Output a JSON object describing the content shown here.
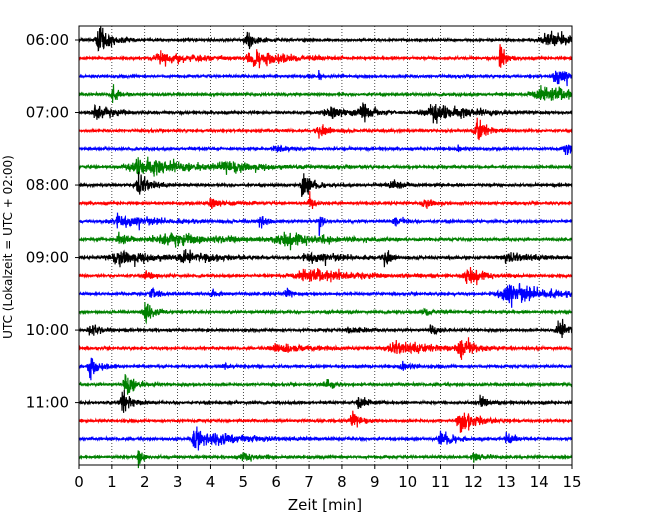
{
  "chart_data": {
    "type": "line",
    "xlabel": "Zeit  [min]",
    "ylabel": "UTC (Lokalzeit = UTC + 02:00)",
    "xlim": [
      0,
      15
    ],
    "x_ticks": [
      0,
      1,
      2,
      3,
      4,
      5,
      6,
      7,
      8,
      9,
      10,
      11,
      12,
      13,
      14,
      15
    ],
    "y_ticks": [
      "06:00",
      "07:00",
      "08:00",
      "09:00",
      "10:00",
      "11:00"
    ],
    "start_time": "06:00",
    "trace_interval_min": 15,
    "grid": "vertical dotted",
    "colors": [
      "#000000",
      "#ff0000",
      "#0000ff",
      "#008000"
    ],
    "traces": [
      {
        "time": "06:00",
        "events": [
          {
            "t": 0.6,
            "amp": 1.0,
            "dur": 0.4
          },
          {
            "t": 5.1,
            "amp": 0.7,
            "dur": 0.3
          },
          {
            "t": 14.2,
            "amp": 0.45,
            "dur": 0.9
          }
        ]
      },
      {
        "time": "06:15",
        "events": [
          {
            "t": 2.5,
            "amp": 0.35,
            "dur": 1.2
          },
          {
            "t": 5.3,
            "amp": 0.45,
            "dur": 1.2
          },
          {
            "t": 12.8,
            "amp": 0.9,
            "dur": 0.2
          }
        ]
      },
      {
        "time": "06:30",
        "events": [
          {
            "t": 7.3,
            "amp": 0.3,
            "dur": 0.1
          },
          {
            "t": 14.5,
            "amp": 0.65,
            "dur": 0.4
          }
        ]
      },
      {
        "time": "06:45",
        "events": [
          {
            "t": 1.0,
            "amp": 0.55,
            "dur": 0.2
          },
          {
            "t": 14.0,
            "amp": 0.6,
            "dur": 1.2
          }
        ]
      },
      {
        "time": "07:00",
        "events": [
          {
            "t": 0.5,
            "amp": 0.6,
            "dur": 0.5
          },
          {
            "t": 8.6,
            "amp": 0.6,
            "dur": 0.3
          },
          {
            "t": 10.8,
            "amp": 0.55,
            "dur": 1.2
          },
          {
            "t": 7.6,
            "amp": 0.3,
            "dur": 1.2
          }
        ]
      },
      {
        "time": "07:15",
        "events": [
          {
            "t": 7.3,
            "amp": 0.4,
            "dur": 0.4
          },
          {
            "t": 12.1,
            "amp": 0.85,
            "dur": 0.3
          }
        ]
      },
      {
        "time": "07:30",
        "events": [
          {
            "t": 14.8,
            "amp": 0.5,
            "dur": 0.3
          },
          {
            "t": 6.0,
            "amp": 0.25,
            "dur": 0.4
          },
          {
            "t": 11.5,
            "amp": 0.25,
            "dur": 0.2
          }
        ]
      },
      {
        "time": "07:45",
        "events": [
          {
            "t": 1.8,
            "amp": 0.6,
            "dur": 1.6
          },
          {
            "t": 4.5,
            "amp": 0.25,
            "dur": 1.5
          }
        ]
      },
      {
        "time": "08:00",
        "events": [
          {
            "t": 1.8,
            "amp": 0.75,
            "dur": 0.4
          },
          {
            "t": 6.8,
            "amp": 1.0,
            "dur": 0.3
          },
          {
            "t": 9.5,
            "amp": 0.3,
            "dur": 0.5
          }
        ]
      },
      {
        "time": "08:15",
        "events": [
          {
            "t": 7.0,
            "amp": 0.55,
            "dur": 0.15
          },
          {
            "t": 10.5,
            "amp": 0.3,
            "dur": 0.4
          },
          {
            "t": 4.0,
            "amp": 0.25,
            "dur": 0.6
          }
        ]
      },
      {
        "time": "08:30",
        "events": [
          {
            "t": 7.3,
            "amp": 1.0,
            "dur": 0.1
          },
          {
            "t": 5.5,
            "amp": 0.4,
            "dur": 0.2
          },
          {
            "t": 1.2,
            "amp": 0.35,
            "dur": 1.4
          },
          {
            "t": 9.6,
            "amp": 0.35,
            "dur": 0.3
          }
        ]
      },
      {
        "time": "08:45",
        "events": [
          {
            "t": 1.2,
            "amp": 0.55,
            "dur": 0.3
          },
          {
            "t": 2.6,
            "amp": 0.4,
            "dur": 1.8
          },
          {
            "t": 6.2,
            "amp": 0.35,
            "dur": 1.6
          }
        ]
      },
      {
        "time": "09:00",
        "events": [
          {
            "t": 1.2,
            "amp": 0.45,
            "dur": 1.5
          },
          {
            "t": 3.2,
            "amp": 0.3,
            "dur": 0.8
          },
          {
            "t": 9.3,
            "amp": 0.6,
            "dur": 0.2
          },
          {
            "t": 7.0,
            "amp": 0.3,
            "dur": 1.2
          },
          {
            "t": 13.0,
            "amp": 0.3,
            "dur": 1.0
          }
        ]
      },
      {
        "time": "09:15",
        "events": [
          {
            "t": 6.8,
            "amp": 0.45,
            "dur": 1.6
          },
          {
            "t": 11.8,
            "amp": 0.55,
            "dur": 0.5
          },
          {
            "t": 2.0,
            "amp": 0.3,
            "dur": 0.3
          }
        ]
      },
      {
        "time": "09:30",
        "events": [
          {
            "t": 13.0,
            "amp": 0.65,
            "dur": 1.3
          },
          {
            "t": 2.2,
            "amp": 0.4,
            "dur": 0.3
          },
          {
            "t": 4.0,
            "amp": 0.35,
            "dur": 0.2
          },
          {
            "t": 6.3,
            "amp": 0.3,
            "dur": 0.2
          }
        ]
      },
      {
        "time": "09:45",
        "events": [
          {
            "t": 2.0,
            "amp": 0.65,
            "dur": 0.3
          },
          {
            "t": 10.5,
            "amp": 0.25,
            "dur": 0.3
          }
        ]
      },
      {
        "time": "10:00",
        "events": [
          {
            "t": 0.3,
            "amp": 0.5,
            "dur": 0.3
          },
          {
            "t": 14.6,
            "amp": 0.65,
            "dur": 0.4
          },
          {
            "t": 10.7,
            "amp": 0.45,
            "dur": 0.2
          },
          {
            "t": 8.2,
            "amp": 0.25,
            "dur": 0.4
          }
        ]
      },
      {
        "time": "10:15",
        "events": [
          {
            "t": 11.6,
            "amp": 0.75,
            "dur": 0.4
          },
          {
            "t": 9.6,
            "amp": 0.4,
            "dur": 1.4
          },
          {
            "t": 6.0,
            "amp": 0.3,
            "dur": 1.0
          }
        ]
      },
      {
        "time": "10:30",
        "events": [
          {
            "t": 0.3,
            "amp": 0.75,
            "dur": 0.3
          },
          {
            "t": 9.8,
            "amp": 0.35,
            "dur": 0.3
          },
          {
            "t": 4.4,
            "amp": 0.25,
            "dur": 0.2
          }
        ]
      },
      {
        "time": "10:45",
        "events": [
          {
            "t": 1.4,
            "amp": 0.85,
            "dur": 0.3
          },
          {
            "t": 7.5,
            "amp": 0.3,
            "dur": 0.3
          }
        ]
      },
      {
        "time": "11:00",
        "events": [
          {
            "t": 1.3,
            "amp": 0.8,
            "dur": 0.3
          },
          {
            "t": 8.5,
            "amp": 0.65,
            "dur": 0.3
          },
          {
            "t": 12.2,
            "amp": 0.3,
            "dur": 0.3
          }
        ]
      },
      {
        "time": "11:15",
        "events": [
          {
            "t": 8.3,
            "amp": 0.5,
            "dur": 0.3
          },
          {
            "t": 11.6,
            "amp": 0.55,
            "dur": 0.6
          }
        ]
      },
      {
        "time": "11:30",
        "events": [
          {
            "t": 3.5,
            "amp": 0.9,
            "dur": 0.3
          },
          {
            "t": 4.2,
            "amp": 0.3,
            "dur": 1.5
          },
          {
            "t": 11.0,
            "amp": 0.55,
            "dur": 0.4
          },
          {
            "t": 13.0,
            "amp": 0.3,
            "dur": 0.3
          }
        ]
      },
      {
        "time": "11:45",
        "events": [
          {
            "t": 1.8,
            "amp": 0.75,
            "dur": 0.15
          },
          {
            "t": 5.0,
            "amp": 0.25,
            "dur": 0.5
          },
          {
            "t": 12.0,
            "amp": 0.25,
            "dur": 0.4
          }
        ]
      }
    ]
  }
}
